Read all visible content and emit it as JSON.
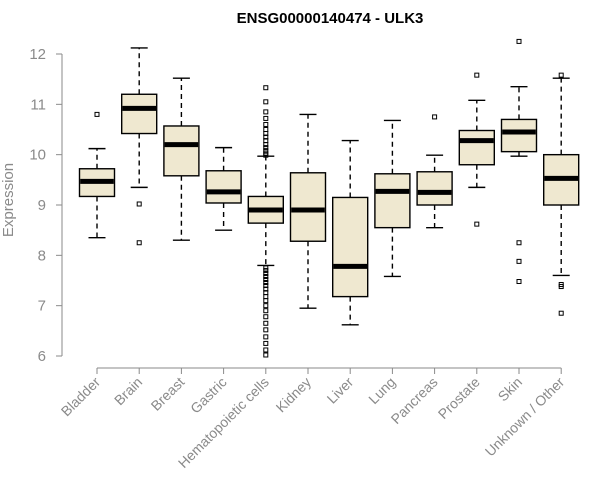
{
  "chart_data": {
    "type": "boxplot",
    "title": "ENSG00000140474 - ULK3",
    "xlabel": "",
    "ylabel": "Expression",
    "ylim": [
      6,
      12
    ],
    "yticks": [
      6,
      7,
      8,
      9,
      10,
      11,
      12
    ],
    "categories": [
      "Bladder",
      "Brain",
      "Breast",
      "Gastric",
      "Hematopoietic cells",
      "Kidney",
      "Liver",
      "Lung",
      "Pancreas",
      "Prostate",
      "Skin",
      "Unknown / Other"
    ],
    "boxes": [
      {
        "category": "Bladder",
        "whisker_low": 8.35,
        "q1": 9.17,
        "median": 9.47,
        "q3": 9.72,
        "whisker_high": 10.12,
        "outliers": [
          10.8
        ]
      },
      {
        "category": "Brain",
        "whisker_low": 9.35,
        "q1": 10.42,
        "median": 10.92,
        "q3": 11.2,
        "whisker_high": 12.12,
        "outliers": [
          9.02,
          8.25
        ]
      },
      {
        "category": "Breast",
        "whisker_low": 8.3,
        "q1": 9.58,
        "median": 10.2,
        "q3": 10.57,
        "whisker_high": 11.52,
        "outliers": []
      },
      {
        "category": "Gastric",
        "whisker_low": 8.5,
        "q1": 9.04,
        "median": 9.26,
        "q3": 9.68,
        "whisker_high": 10.14,
        "outliers": []
      },
      {
        "category": "Hematopoietic cells",
        "whisker_low": 7.8,
        "q1": 8.64,
        "median": 8.9,
        "q3": 9.17,
        "whisker_high": 9.97,
        "outliers": [
          11.33,
          11.05,
          10.85,
          10.72,
          10.6,
          10.5,
          10.42,
          10.35,
          10.28,
          10.2,
          10.14,
          10.08,
          10.03,
          9.99,
          7.75,
          7.7,
          7.64,
          7.58,
          7.52,
          7.46,
          7.4,
          7.33,
          7.26,
          7.18,
          7.1,
          7.0,
          6.9,
          6.78,
          6.65,
          6.52,
          6.38,
          6.25,
          6.12,
          6.02
        ]
      },
      {
        "category": "Kidney",
        "whisker_low": 6.95,
        "q1": 8.28,
        "median": 8.9,
        "q3": 9.64,
        "whisker_high": 10.8,
        "outliers": []
      },
      {
        "category": "Liver",
        "whisker_low": 6.62,
        "q1": 7.18,
        "median": 7.78,
        "q3": 9.15,
        "whisker_high": 10.28,
        "outliers": []
      },
      {
        "category": "Lung",
        "whisker_low": 7.58,
        "q1": 8.55,
        "median": 9.27,
        "q3": 9.62,
        "whisker_high": 10.68,
        "outliers": []
      },
      {
        "category": "Pancreas",
        "whisker_low": 8.55,
        "q1": 9.0,
        "median": 9.25,
        "q3": 9.66,
        "whisker_high": 9.99,
        "outliers": [
          10.75
        ]
      },
      {
        "category": "Prostate",
        "whisker_low": 9.35,
        "q1": 9.8,
        "median": 10.28,
        "q3": 10.48,
        "whisker_high": 11.08,
        "outliers": [
          11.58,
          8.62
        ]
      },
      {
        "category": "Skin",
        "whisker_low": 9.97,
        "q1": 10.06,
        "median": 10.45,
        "q3": 10.7,
        "whisker_high": 11.35,
        "outliers": [
          12.25,
          8.25,
          7.88,
          7.48
        ]
      },
      {
        "category": "Unknown / Other",
        "whisker_low": 7.6,
        "q1": 9.0,
        "median": 9.53,
        "q3": 10.0,
        "whisker_high": 11.52,
        "outliers": [
          11.58,
          7.42,
          7.38,
          6.85
        ]
      }
    ]
  }
}
